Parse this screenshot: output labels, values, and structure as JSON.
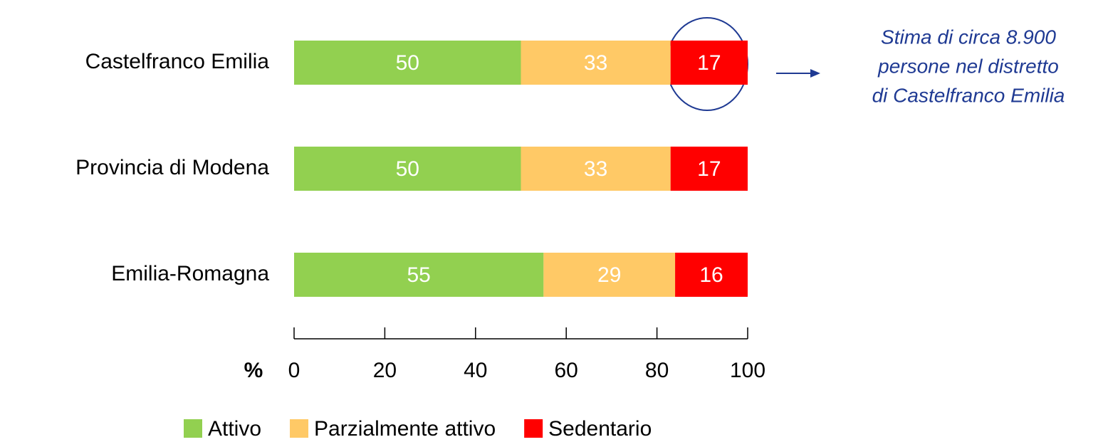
{
  "chart_data": {
    "type": "stacked_barh",
    "categories": [
      "Castelfranco Emilia",
      "Provincia di Modena",
      "Emilia-Romagna"
    ],
    "series": [
      {
        "name": "Attivo",
        "color": "#92d050",
        "values": [
          50,
          50,
          55
        ]
      },
      {
        "name": "Parzialmente attivo",
        "color": "#ffc966",
        "values": [
          33,
          33,
          29
        ]
      },
      {
        "name": "Sedentario",
        "color": "#ff0000",
        "values": [
          17,
          17,
          16
        ]
      }
    ],
    "xlabel": "%",
    "xlim": [
      0,
      100
    ],
    "xticks": [
      0,
      20,
      40,
      60,
      80,
      100
    ],
    "annotation": [
      "Stima di circa 8.900",
      "persone nel distretto",
      "di Castelfranco Emilia"
    ]
  }
}
